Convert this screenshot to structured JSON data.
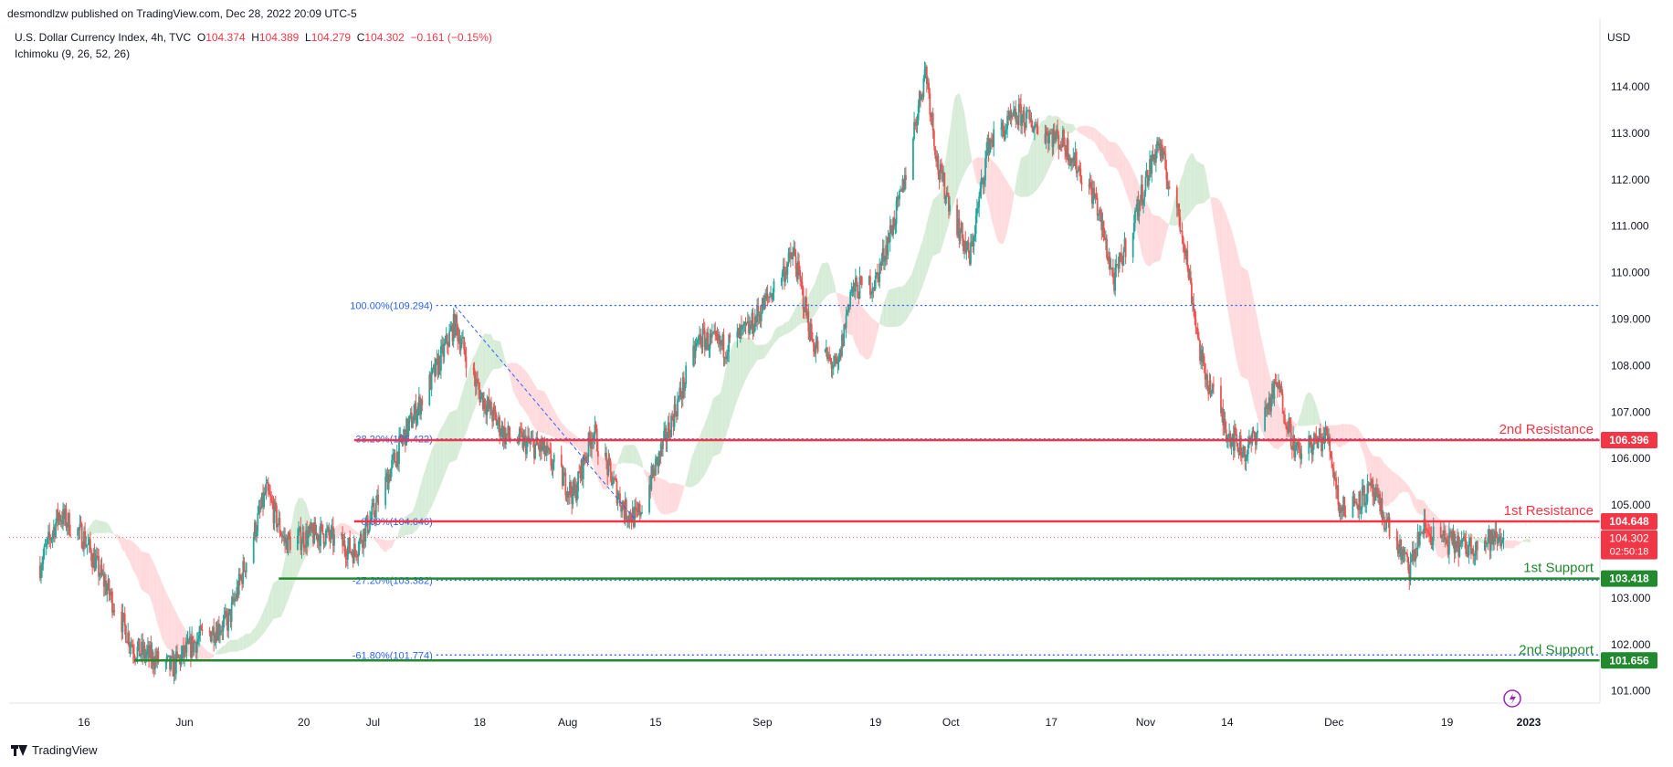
{
  "header": {
    "published": "desmondlzw published on TradingView.com, Dec 28, 2022 20:09 UTC-5",
    "symbol": "U.S. Dollar Currency Index, 4h, TVC",
    "ohlc": {
      "o_label": "O",
      "o": "104.374",
      "h_label": "H",
      "h": "104.389",
      "l_label": "L",
      "l": "104.279",
      "c_label": "C",
      "c": "104.302",
      "change": "−0.161 (−0.15%)"
    },
    "indicator": "Ichimoku (9, 26, 52, 26)",
    "currency": "USD"
  },
  "footer": {
    "brand": "TradingView"
  },
  "colors": {
    "up": "#26a69a",
    "down": "#ef5350",
    "resistance": "#f23645",
    "support": "#22892f",
    "fib": "#2962ff",
    "cloud_up": "#c8e6c9",
    "cloud_down": "#ffcdd2",
    "text": "#131722",
    "axis": "#787b86"
  },
  "chart_data": {
    "type": "candlestick",
    "interval": "4h",
    "y_range": [
      100.6,
      115.3
    ],
    "y_ticks": [
      "101.000",
      "102.000",
      "103.000",
      "104.000",
      "105.000",
      "106.000",
      "107.000",
      "108.000",
      "109.000",
      "110.000",
      "111.000",
      "112.000",
      "113.000",
      "114.000"
    ],
    "x_ticks": [
      {
        "label": "16",
        "date": "2022-05-16"
      },
      {
        "label": "Jun",
        "date": "2022-06-01"
      },
      {
        "label": "20",
        "date": "2022-06-20"
      },
      {
        "label": "Jul",
        "date": "2022-07-01"
      },
      {
        "label": "18",
        "date": "2022-07-18"
      },
      {
        "label": "Aug",
        "date": "2022-08-01"
      },
      {
        "label": "15",
        "date": "2022-08-15"
      },
      {
        "label": "Sep",
        "date": "2022-09-01"
      },
      {
        "label": "19",
        "date": "2022-09-19"
      },
      {
        "label": "Oct",
        "date": "2022-10-01"
      },
      {
        "label": "17",
        "date": "2022-10-17"
      },
      {
        "label": "Nov",
        "date": "2022-11-01"
      },
      {
        "label": "14",
        "date": "2022-11-14"
      },
      {
        "label": "Dec",
        "date": "2022-12-01"
      },
      {
        "label": "19",
        "date": "2022-12-19"
      },
      {
        "label": "2023",
        "date": "2023-01-01"
      }
    ],
    "price_path": [
      [
        "2022-05-09",
        103.7
      ],
      [
        "2022-05-12",
        104.8
      ],
      [
        "2022-05-16",
        104.3
      ],
      [
        "2022-05-20",
        103.1
      ],
      [
        "2022-05-24",
        101.9
      ],
      [
        "2022-05-30",
        101.5
      ],
      [
        "2022-06-03",
        102.1
      ],
      [
        "2022-06-08",
        102.5
      ],
      [
        "2022-06-14",
        105.3
      ],
      [
        "2022-06-17",
        104.2
      ],
      [
        "2022-06-23",
        104.4
      ],
      [
        "2022-06-28",
        104.0
      ],
      [
        "2022-07-01",
        104.8
      ],
      [
        "2022-07-06",
        106.5
      ],
      [
        "2022-07-11",
        107.9
      ],
      [
        "2022-07-14",
        108.9
      ],
      [
        "2022-07-18",
        107.4
      ],
      [
        "2022-07-22",
        106.5
      ],
      [
        "2022-07-28",
        106.2
      ],
      [
        "2022-08-02",
        105.2
      ],
      [
        "2022-08-05",
        106.6
      ],
      [
        "2022-08-10",
        104.9
      ],
      [
        "2022-08-12",
        104.7
      ],
      [
        "2022-08-16",
        106.2
      ],
      [
        "2022-08-22",
        108.6
      ],
      [
        "2022-08-26",
        108.4
      ],
      [
        "2022-08-30",
        108.8
      ],
      [
        "2022-09-06",
        110.4
      ],
      [
        "2022-09-09",
        108.5
      ],
      [
        "2022-09-13",
        107.9
      ],
      [
        "2022-09-15",
        109.6
      ],
      [
        "2022-09-19",
        109.8
      ],
      [
        "2022-09-23",
        111.6
      ],
      [
        "2022-09-27",
        114.4
      ],
      [
        "2022-09-29",
        112.2
      ],
      [
        "2022-10-04",
        110.3
      ],
      [
        "2022-10-07",
        112.8
      ],
      [
        "2022-10-12",
        113.4
      ],
      [
        "2022-10-14",
        113.2
      ],
      [
        "2022-10-19",
        112.8
      ],
      [
        "2022-10-24",
        111.6
      ],
      [
        "2022-10-27",
        109.8
      ],
      [
        "2022-11-03",
        112.8
      ],
      [
        "2022-11-07",
        110.8
      ],
      [
        "2022-11-10",
        108.0
      ],
      [
        "2022-11-14",
        106.6
      ],
      [
        "2022-11-17",
        106.1
      ],
      [
        "2022-11-22",
        107.6
      ],
      [
        "2022-11-25",
        106.1
      ],
      [
        "2022-11-30",
        106.5
      ],
      [
        "2022-12-02",
        104.9
      ],
      [
        "2022-12-07",
        105.3
      ],
      [
        "2022-12-13",
        103.6
      ],
      [
        "2022-12-15",
        104.5
      ],
      [
        "2022-12-19",
        104.2
      ],
      [
        "2022-12-22",
        104.1
      ],
      [
        "2022-12-28",
        104.302
      ]
    ],
    "fib_start": {
      "date": "2022-07-14",
      "label": "100.00%(109.294)",
      "value": 109.294
    },
    "fib_levels": [
      {
        "label": "100.00%(109.294)",
        "value": 109.294
      },
      {
        "label": "38.20%(106.422)",
        "value": 106.422
      },
      {
        "label": "0.00%(104.646)",
        "value": 104.646
      },
      {
        "label": "-27.20%(103.382)",
        "value": 103.382
      },
      {
        "label": "-61.80%(101.774)",
        "value": 101.774
      }
    ],
    "levels": [
      {
        "name": "2nd Resistance",
        "value": 106.396,
        "price_label": "106.396",
        "kind": "resistance",
        "start_date": "2022-06-28"
      },
      {
        "name": "1st Resistance",
        "value": 104.648,
        "price_label": "104.648",
        "kind": "resistance",
        "start_date": "2022-06-28"
      },
      {
        "name": "1st Support",
        "value": 103.418,
        "price_label": "103.418",
        "kind": "support",
        "start_date": "2022-06-16"
      },
      {
        "name": "2nd Support",
        "value": 101.656,
        "price_label": "101.656",
        "kind": "support",
        "start_date": "2022-05-24"
      }
    ],
    "last_price": {
      "value": 104.302,
      "price_label": "104.302",
      "countdown": "02:50:18"
    }
  }
}
